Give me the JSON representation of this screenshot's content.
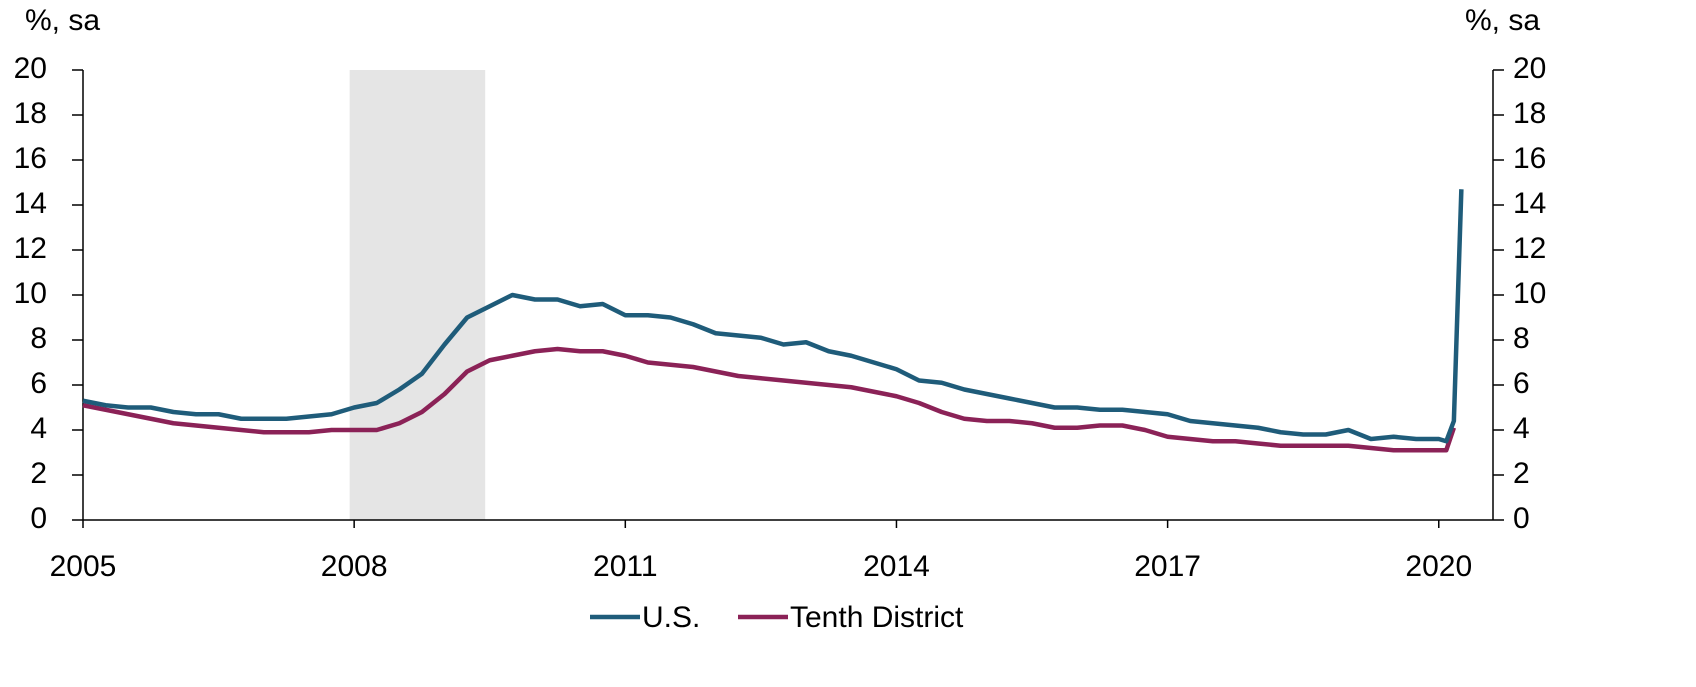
{
  "chart_data": {
    "type": "line",
    "y_label": "%, sa",
    "y2_label": "%, sa",
    "x": [
      2005,
      2005.25,
      2005.5,
      2005.75,
      2006,
      2006.25,
      2006.5,
      2006.75,
      2007,
      2007.25,
      2007.5,
      2007.75,
      2008,
      2008.25,
      2008.5,
      2008.75,
      2009,
      2009.25,
      2009.5,
      2009.75,
      2010,
      2010.25,
      2010.5,
      2010.75,
      2011,
      2011.25,
      2011.5,
      2011.75,
      2012,
      2012.25,
      2012.5,
      2012.75,
      2013,
      2013.25,
      2013.5,
      2013.75,
      2014,
      2014.25,
      2014.5,
      2014.75,
      2015,
      2015.25,
      2015.5,
      2015.75,
      2016,
      2016.25,
      2016.5,
      2016.75,
      2017,
      2017.25,
      2017.5,
      2017.75,
      2018,
      2018.25,
      2018.5,
      2018.75,
      2019,
      2019.25,
      2019.5,
      2019.75,
      2020,
      2020.083,
      2020.167,
      2020.25
    ],
    "series": [
      {
        "name": "U.S.",
        "color": "#1f5c7a",
        "values": [
          5.3,
          5.1,
          5.0,
          5.0,
          4.8,
          4.7,
          4.7,
          4.5,
          4.5,
          4.5,
          4.6,
          4.7,
          5.0,
          5.2,
          5.8,
          6.5,
          7.8,
          9.0,
          9.5,
          10.0,
          9.8,
          9.8,
          9.5,
          9.6,
          9.1,
          9.1,
          9.0,
          8.7,
          8.3,
          8.2,
          8.1,
          7.8,
          7.9,
          7.5,
          7.3,
          7.0,
          6.7,
          6.2,
          6.1,
          5.8,
          5.6,
          5.4,
          5.2,
          5.0,
          5.0,
          4.9,
          4.9,
          4.8,
          4.7,
          4.4,
          4.3,
          4.2,
          4.1,
          3.9,
          3.8,
          3.8,
          4.0,
          3.6,
          3.7,
          3.6,
          3.6,
          3.5,
          4.4,
          14.7
        ]
      },
      {
        "name": "Tenth District",
        "color": "#8b2257",
        "values": [
          5.1,
          4.9,
          4.7,
          4.5,
          4.3,
          4.2,
          4.1,
          4.0,
          3.9,
          3.9,
          3.9,
          4.0,
          4.0,
          4.0,
          4.3,
          4.8,
          5.6,
          6.6,
          7.1,
          7.3,
          7.5,
          7.6,
          7.5,
          7.5,
          7.3,
          7.0,
          6.9,
          6.8,
          6.6,
          6.4,
          6.3,
          6.2,
          6.1,
          6.0,
          5.9,
          5.7,
          5.5,
          5.2,
          4.8,
          4.5,
          4.4,
          4.4,
          4.3,
          4.1,
          4.1,
          4.2,
          4.2,
          4.0,
          3.7,
          3.6,
          3.5,
          3.5,
          3.4,
          3.3,
          3.3,
          3.3,
          3.3,
          3.2,
          3.1,
          3.1,
          3.1,
          3.1,
          4.1,
          null
        ]
      }
    ],
    "recession": {
      "start": 2007.95,
      "end": 2009.45,
      "color": "#e5e5e5"
    },
    "xlim": [
      2005,
      2020.6
    ],
    "xticks": [
      2005,
      2008,
      2011,
      2014,
      2017,
      2020
    ],
    "ylim": [
      0,
      20
    ],
    "yticks": [
      0,
      2,
      4,
      6,
      8,
      10,
      12,
      14,
      16,
      18,
      20
    ],
    "y2lim": [
      0,
      20
    ],
    "y2ticks": [
      0,
      2,
      4,
      6,
      8,
      10,
      12,
      14,
      16,
      18,
      20
    ],
    "grid": false,
    "legend": "bottom"
  }
}
